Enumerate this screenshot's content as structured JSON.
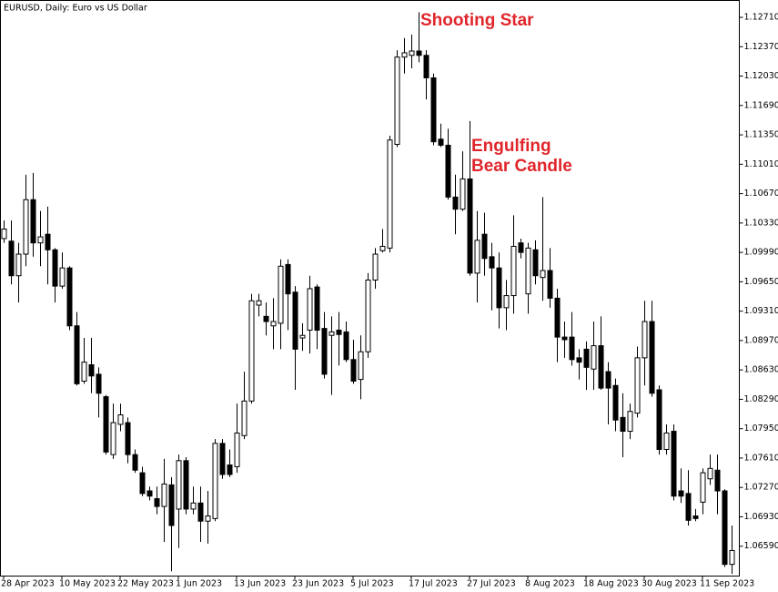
{
  "chart_data": {
    "type": "candlestick",
    "title": "EURUSD, Daily:  Euro vs US Dollar",
    "annotations": [
      {
        "lines": [
          "Shooting Star"
        ]
      },
      {
        "lines": [
          "Engulfing",
          "Bear Candle"
        ]
      }
    ],
    "annotation_color": "#e0262b",
    "up_color": "#ffffff",
    "down_color": "#000000",
    "grid": false,
    "categories": [
      "28 Apr 2023",
      null,
      null,
      null,
      null,
      null,
      null,
      null,
      "10 May 2023",
      null,
      null,
      null,
      null,
      null,
      null,
      null,
      "22 May 2023",
      null,
      null,
      null,
      null,
      null,
      null,
      null,
      "1 Jun 2023",
      null,
      null,
      null,
      null,
      null,
      null,
      null,
      "13 Jun 2023",
      null,
      null,
      null,
      null,
      null,
      null,
      null,
      "23 Jun 2023",
      null,
      null,
      null,
      null,
      null,
      null,
      null,
      "5 Jul 2023",
      null,
      null,
      null,
      null,
      null,
      null,
      null,
      "17 Jul 2023",
      null,
      null,
      null,
      null,
      null,
      null,
      null,
      "27 Jul 2023",
      null,
      null,
      null,
      null,
      null,
      null,
      null,
      "8 Aug 2023",
      null,
      null,
      null,
      null,
      null,
      null,
      null,
      "18 Aug 2023",
      null,
      null,
      null,
      null,
      null,
      null,
      null,
      "30 Aug 2023",
      null,
      null,
      null,
      null,
      null,
      null,
      null,
      "11 Sep 2023",
      null,
      null,
      null,
      null
    ],
    "open": [
      1.1015,
      1.1012,
      1.0972,
      1.0997,
      1.106,
      1.101,
      1.102,
      1.1002,
      1.096,
      1.0981,
      1.0914,
      1.085,
      1.0869,
      1.0858,
      1.0832,
      1.0765,
      1.08,
      1.0802,
      1.0765,
      1.0744,
      1.0723,
      1.0714,
      1.0705,
      1.073,
      1.0702,
      1.0758,
      1.0702,
      1.0709,
      1.0688,
      1.0691,
      1.0778,
      1.0753,
      1.0751,
      1.0787,
      1.0827,
      1.0938,
      1.0925,
      1.0914,
      1.0917,
      1.0985,
      1.0953,
      1.09,
      1.0909,
      1.0959,
      1.0911,
      1.0903,
      1.0909,
      1.0907,
      1.0875,
      1.0852,
      1.0884,
      1.0967,
      1.1001,
      1.1004,
      1.1124,
      1.1225,
      1.1227,
      1.1232,
      1.1227,
      1.1201,
      1.113,
      1.1123,
      1.1063,
      1.1049,
      1.1084,
      1.0975,
      1.102,
      1.0994,
      1.0981,
      1.0935,
      1.0949,
      1.101,
      1.0951,
      1.1002,
      1.097,
      1.0978,
      1.0946,
      1.0901,
      1.0901,
      1.0877,
      1.0887,
      1.0864,
      1.0891,
      1.0861,
      1.0845,
      1.0808,
      1.0792,
      1.0813,
      1.0877,
      1.0919,
      1.084,
      1.0771,
      1.0792,
      1.0723,
      1.072,
      1.0694,
      1.071,
      1.0737,
      1.0747,
      1.0723,
      1.0638
    ],
    "high": [
      1.1036,
      1.1036,
      1.101,
      1.1089,
      1.1091,
      1.1047,
      1.1052,
      1.1004,
      1.0999,
      1.0983,
      1.093,
      1.09,
      1.09,
      1.0866,
      1.0834,
      1.0824,
      1.0824,
      1.0808,
      1.0771,
      1.0751,
      1.0728,
      1.0728,
      1.076,
      1.0739,
      1.0765,
      1.0762,
      1.0728,
      1.0728,
      1.0723,
      1.0783,
      1.0783,
      1.0771,
      1.0824,
      1.0861,
      1.0951,
      1.0951,
      1.0941,
      1.0946,
      1.0991,
      1.0991,
      1.096,
      1.0917,
      1.0972,
      1.0962,
      1.093,
      1.0925,
      1.093,
      1.0919,
      1.0898,
      1.0903,
      1.0975,
      1.1004,
      1.1026,
      1.1134,
      1.1233,
      1.1247,
      1.1251,
      1.1277,
      1.1233,
      1.1206,
      1.1148,
      1.1142,
      1.1089,
      1.1116,
      1.1151,
      1.1047,
      1.1045,
      1.101,
      1.0999,
      1.0967,
      1.1042,
      1.1015,
      1.101,
      1.1013,
      1.1063,
      1.1004,
      1.0957,
      1.0919,
      1.093,
      1.0887,
      1.0896,
      1.0919,
      1.0925,
      1.0872,
      1.0853,
      1.0836,
      1.0824,
      1.089,
      1.0943,
      1.0943,
      1.0845,
      1.08,
      1.08,
      1.0749,
      1.0747,
      1.0702,
      1.0749,
      1.0765,
      1.0765,
      1.0725,
      1.0683
    ],
    "low": [
      1.101,
      1.0962,
      1.0941,
      1.0983,
      1.0994,
      1.0983,
      1.0962,
      1.0941,
      1.0957,
      1.0909,
      1.0845,
      1.0847,
      1.0836,
      1.0808,
      1.0765,
      1.076,
      1.0792,
      1.0755,
      1.0744,
      1.0717,
      1.0712,
      1.0696,
      1.0664,
      1.063,
      1.0657,
      1.0696,
      1.0696,
      1.0664,
      1.0662,
      1.0688,
      1.0737,
      1.0739,
      1.0744,
      1.0783,
      1.0824,
      1.0925,
      1.0903,
      1.0887,
      1.0887,
      1.0909,
      1.084,
      1.0885,
      1.0882,
      1.0887,
      1.0853,
      1.0834,
      1.0868,
      1.0872,
      1.0847,
      1.0829,
      1.0877,
      1.0957,
      1.0999,
      1.0999,
      1.1121,
      1.1206,
      1.1212,
      1.1219,
      1.1176,
      1.1123,
      1.1121,
      1.106,
      1.102,
      1.1047,
      1.0972,
      1.0941,
      1.0972,
      1.0932,
      1.0911,
      1.0909,
      1.0928,
      1.0992,
      1.0928,
      1.0962,
      1.0943,
      1.0935,
      1.0872,
      1.0877,
      1.0868,
      1.0852,
      1.084,
      1.084,
      1.084,
      1.08,
      1.0792,
      1.0762,
      1.0783,
      1.0808,
      1.0845,
      1.0832,
      1.0765,
      1.0765,
      1.0712,
      1.0709,
      1.0683,
      1.0688,
      1.0696,
      1.073,
      1.0696,
      1.0635,
      1.0627
    ],
    "close": [
      1.1026,
      1.0972,
      1.0997,
      1.106,
      1.101,
      1.1017,
      1.1002,
      1.096,
      1.0981,
      1.0914,
      1.0847,
      1.0872,
      1.0856,
      1.0836,
      1.0768,
      1.0802,
      1.0811,
      1.0765,
      1.0747,
      1.072,
      1.0717,
      1.0705,
      1.0731,
      1.0683,
      1.0758,
      1.0702,
      1.0709,
      1.0688,
      1.0694,
      1.0778,
      1.0742,
      1.0742,
      1.079,
      1.0827,
      1.0943,
      1.0943,
      1.0919,
      1.0919,
      1.0983,
      1.0951,
      1.0887,
      1.0903,
      1.0957,
      1.0909,
      1.0858,
      1.0907,
      1.0904,
      1.0875,
      1.085,
      1.0884,
      1.0967,
      1.0997,
      1.1006,
      1.1129,
      1.1225,
      1.123,
      1.1232,
      1.1227,
      1.1201,
      1.1127,
      1.1123,
      1.1063,
      1.1049,
      1.1084,
      1.0975,
      1.1013,
      1.0992,
      1.0981,
      1.0935,
      1.0949,
      1.1006,
      1.0999,
      1.1004,
      1.0972,
      1.0978,
      1.0946,
      1.0901,
      1.0898,
      1.0875,
      1.0872,
      1.0866,
      1.0891,
      1.0842,
      1.0842,
      1.0805,
      1.0792,
      1.0815,
      1.0877,
      1.0919,
      1.0836,
      1.0771,
      1.079,
      1.0717,
      1.0717,
      1.0689,
      1.0691,
      1.0744,
      1.0749,
      1.0723,
      1.0638,
      1.0654
    ],
    "ylim": [
      1.0625,
      1.129
    ],
    "yticks": [
      {
        "value": 1.1271,
        "label": "1.12710"
      },
      {
        "value": 1.1237,
        "label": "1.12370"
      },
      {
        "value": 1.1203,
        "label": "1.12030"
      },
      {
        "value": 1.1169,
        "label": "1.11690"
      },
      {
        "value": 1.1135,
        "label": "1.11350"
      },
      {
        "value": 1.1101,
        "label": "1.11010"
      },
      {
        "value": 1.1067,
        "label": "1.10670"
      },
      {
        "value": 1.1033,
        "label": "1.10330"
      },
      {
        "value": 1.0999,
        "label": "1.09990"
      },
      {
        "value": 1.0965,
        "label": "1.09650"
      },
      {
        "value": 1.0931,
        "label": "1.09310"
      },
      {
        "value": 1.0897,
        "label": "1.08970"
      },
      {
        "value": 1.0863,
        "label": "1.08630"
      },
      {
        "value": 1.0829,
        "label": "1.08290"
      },
      {
        "value": 1.0795,
        "label": "1.07950"
      },
      {
        "value": 1.0761,
        "label": "1.07610"
      },
      {
        "value": 1.0727,
        "label": "1.07270"
      },
      {
        "value": 1.0693,
        "label": "1.06930"
      },
      {
        "value": 1.0659,
        "label": "1.06590"
      }
    ]
  }
}
